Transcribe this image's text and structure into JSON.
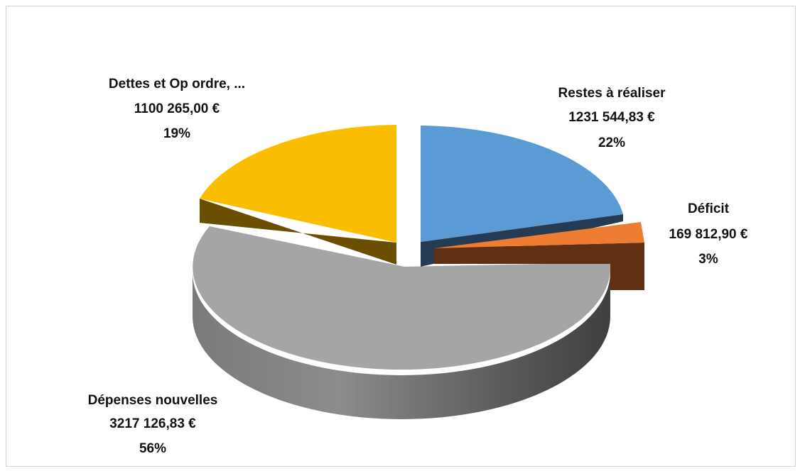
{
  "chart_data": {
    "type": "pie",
    "style": "3d-exploded",
    "title": "",
    "slices": [
      {
        "label": "Restes à réaliser",
        "amount": "1231 544,83 €",
        "percent": "22%",
        "value": 1231544.83,
        "color": "#5b9bd5"
      },
      {
        "label": "Déficit",
        "amount": "169 812,90 €",
        "percent": "3%",
        "value": 169812.9,
        "color": "#ed7d31"
      },
      {
        "label": "Dépenses nouvelles",
        "amount": "3217 126,83 €",
        "percent": "56%",
        "value": 3217126.83,
        "color": "#a5a5a5"
      },
      {
        "label": "Dettes et Op ordre, ...",
        "amount": "1100 265,00 €",
        "percent": "19%",
        "value": 1100265.0,
        "color": "#ffc000"
      }
    ]
  }
}
